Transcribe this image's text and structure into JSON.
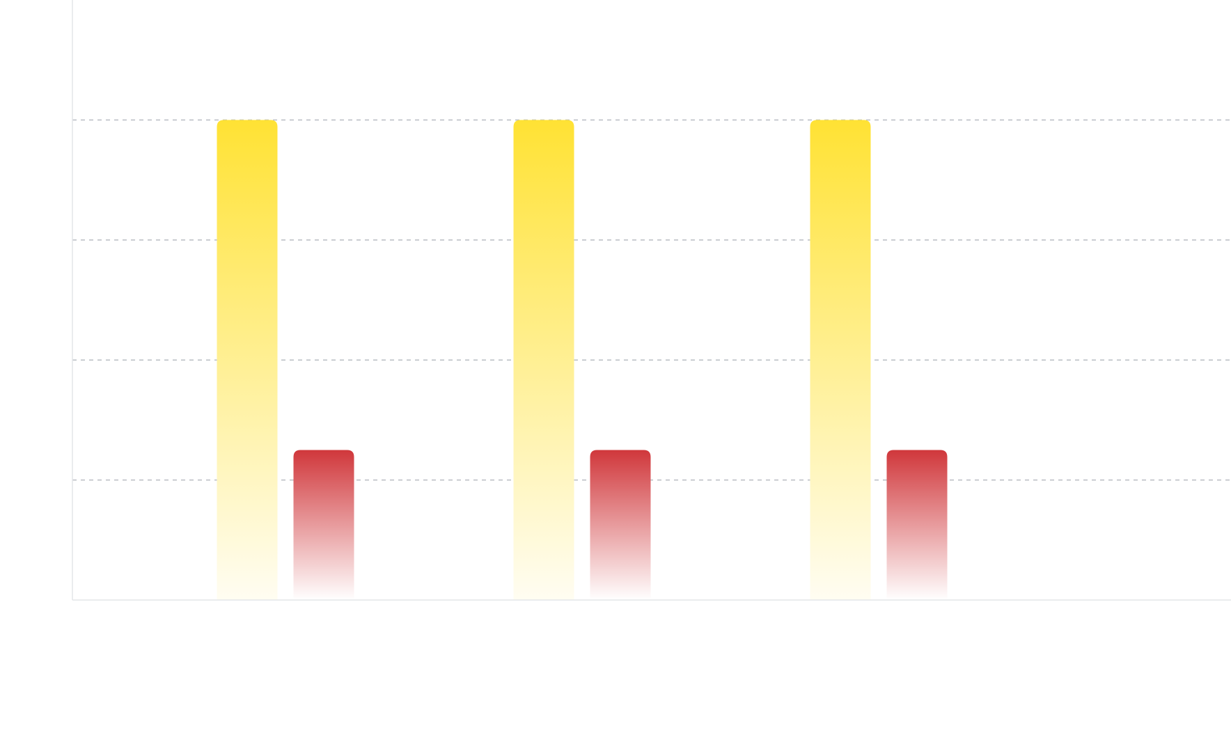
{
  "chart_data": {
    "type": "bar",
    "categories": [
      "",
      "",
      ""
    ],
    "series": [
      {
        "values": [
          4,
          4,
          4
        ],
        "color_top": "#ffe234",
        "color_bottom": "#fffdf2"
      },
      {
        "values": [
          1.25,
          1.25,
          1.25
        ],
        "color_top": "#d0373b",
        "color_bottom": "#ffffff"
      }
    ],
    "ylim": [
      0,
      5
    ],
    "gridlines": [
      1,
      2,
      3,
      4
    ],
    "grid": true,
    "legend": "none",
    "title": "",
    "xlabel": "",
    "ylabel": ""
  }
}
